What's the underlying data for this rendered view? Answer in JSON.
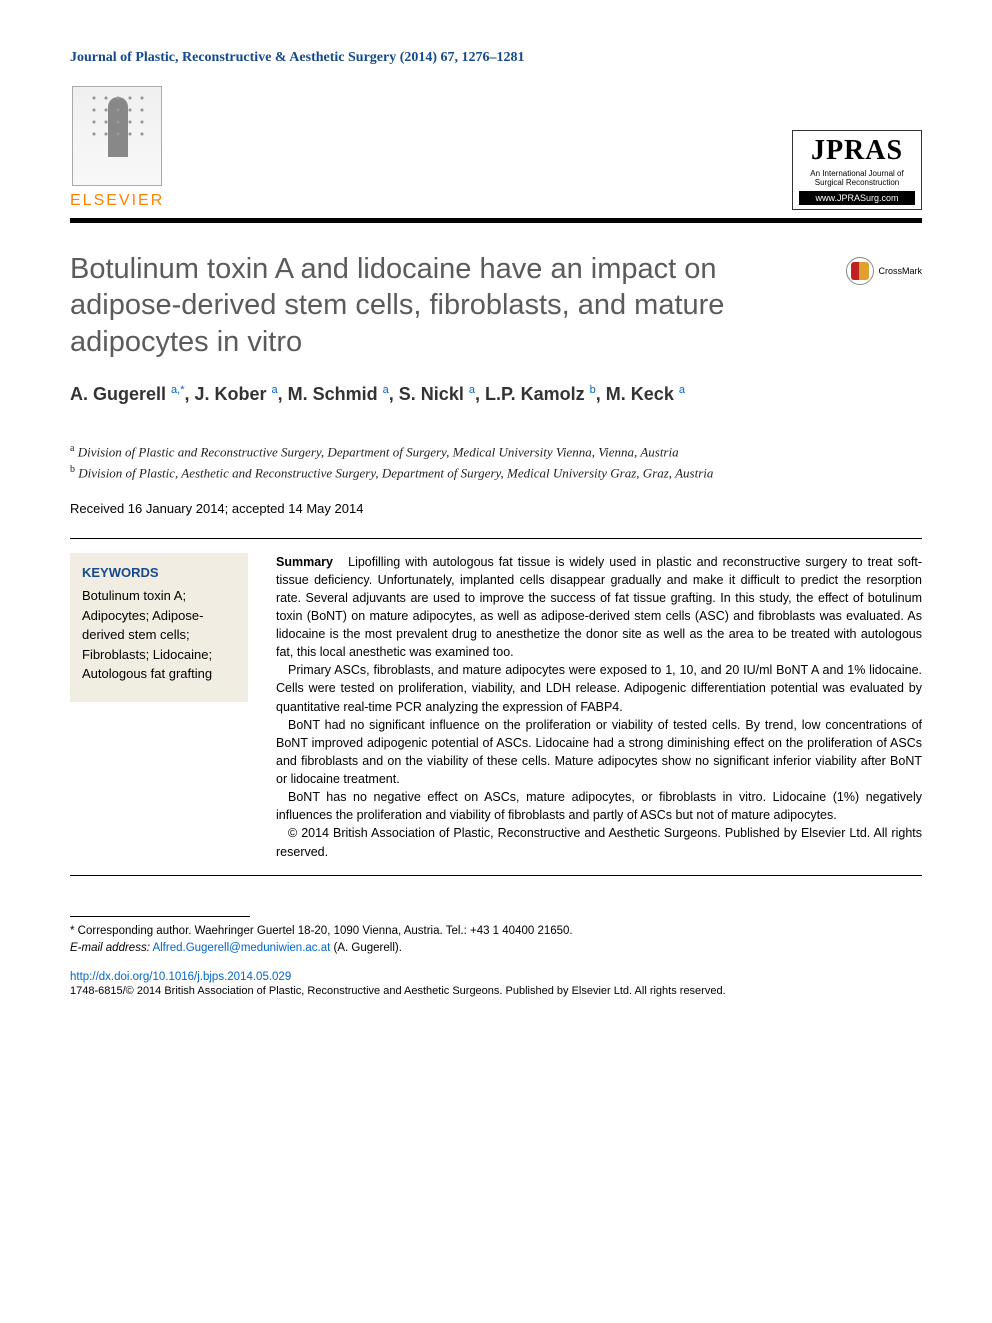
{
  "header": {
    "journal_line": "Journal of Plastic, Reconstructive & Aesthetic Surgery (2014) 67, 1276–1281",
    "elsevier": "ELSEVIER",
    "jpras": {
      "title": "JPRAS",
      "sub": "An International Journal of Surgical Reconstruction",
      "url": "www.JPRASurg.com"
    }
  },
  "crossmark_label": "CrossMark",
  "title": "Botulinum toxin A and lidocaine have an impact on adipose-derived stem cells, fibroblasts, and mature adipocytes in vitro",
  "authors_html": "A. Gugerell <sup class='sup-link'>a,*</sup>, J. Kober <sup class='sup-link'>a</sup>, M. Schmid <sup class='sup-link'>a</sup>, S. Nickl <sup class='sup-link'>a</sup>, L.P. Kamolz <sup class='sup-link'>b</sup>, M. Keck <sup class='sup-link'>a</sup>",
  "affiliations": {
    "a": "Division of Plastic and Reconstructive Surgery, Department of Surgery, Medical University Vienna, Vienna, Austria",
    "b": "Division of Plastic, Aesthetic and Reconstructive Surgery, Department of Surgery, Medical University Graz, Graz, Austria"
  },
  "dates": "Received 16 January 2014; accepted 14 May 2014",
  "keywords": {
    "heading": "KEYWORDS",
    "items": "Botulinum toxin A; Adipocytes; Adipose-derived stem cells; Fibroblasts; Lidocaine; Autologous fat grafting"
  },
  "summary": {
    "lead": "Summary",
    "p1": "Lipofilling with autologous fat tissue is widely used in plastic and reconstructive surgery to treat soft-tissue deficiency. Unfortunately, implanted cells disappear gradually and make it difficult to predict the resorption rate. Several adjuvants are used to improve the success of fat tissue grafting. In this study, the effect of botulinum toxin (BoNT) on mature adipocytes, as well as adipose-derived stem cells (ASC) and fibroblasts was evaluated. As lidocaine is the most prevalent drug to anesthetize the donor site as well as the area to be treated with autologous fat, this local anesthetic was examined too.",
    "p2": "Primary ASCs, fibroblasts, and mature adipocytes were exposed to 1, 10, and 20 IU/ml BoNT A and 1% lidocaine. Cells were tested on proliferation, viability, and LDH release. Adipogenic differentiation potential was evaluated by quantitative real-time PCR analyzing the expression of FABP4.",
    "p3": "BoNT had no significant influence on the proliferation or viability of tested cells. By trend, low concentrations of BoNT improved adipogenic potential of ASCs. Lidocaine had a strong diminishing effect on the proliferation of ASCs and fibroblasts and on the viability of these cells. Mature adipocytes show no significant inferior viability after BoNT or lidocaine treatment.",
    "p4": "BoNT has no negative effect on ASCs, mature adipocytes, or fibroblasts in vitro. Lidocaine (1%) negatively influences the proliferation and viability of fibroblasts and partly of ASCs but not of mature adipocytes.",
    "p5": "© 2014 British Association of Plastic, Reconstructive and Aesthetic Surgeons. Published by Elsevier Ltd. All rights reserved."
  },
  "footnotes": {
    "corr": "* Corresponding author. Waehringer Guertel 18-20, 1090 Vienna, Austria. Tel.: +43 1 40400 21650.",
    "email_label": "E-mail address:",
    "email": "Alfred.Gugerell@meduniwien.ac.at",
    "email_name": "(A. Gugerell)."
  },
  "doi": "http://dx.doi.org/10.1016/j.bjps.2014.05.029",
  "issn_line": "1748-6815/© 2014 British Association of Plastic, Reconstructive and Aesthetic Surgeons. Published by Elsevier Ltd. All rights reserved.",
  "colors": {
    "journal_blue": "#144a8c",
    "elsevier_orange": "#ff8200",
    "title_gray": "#5b5b5b",
    "link_blue": "#0066cc",
    "keywords_bg": "#f2ede3"
  }
}
